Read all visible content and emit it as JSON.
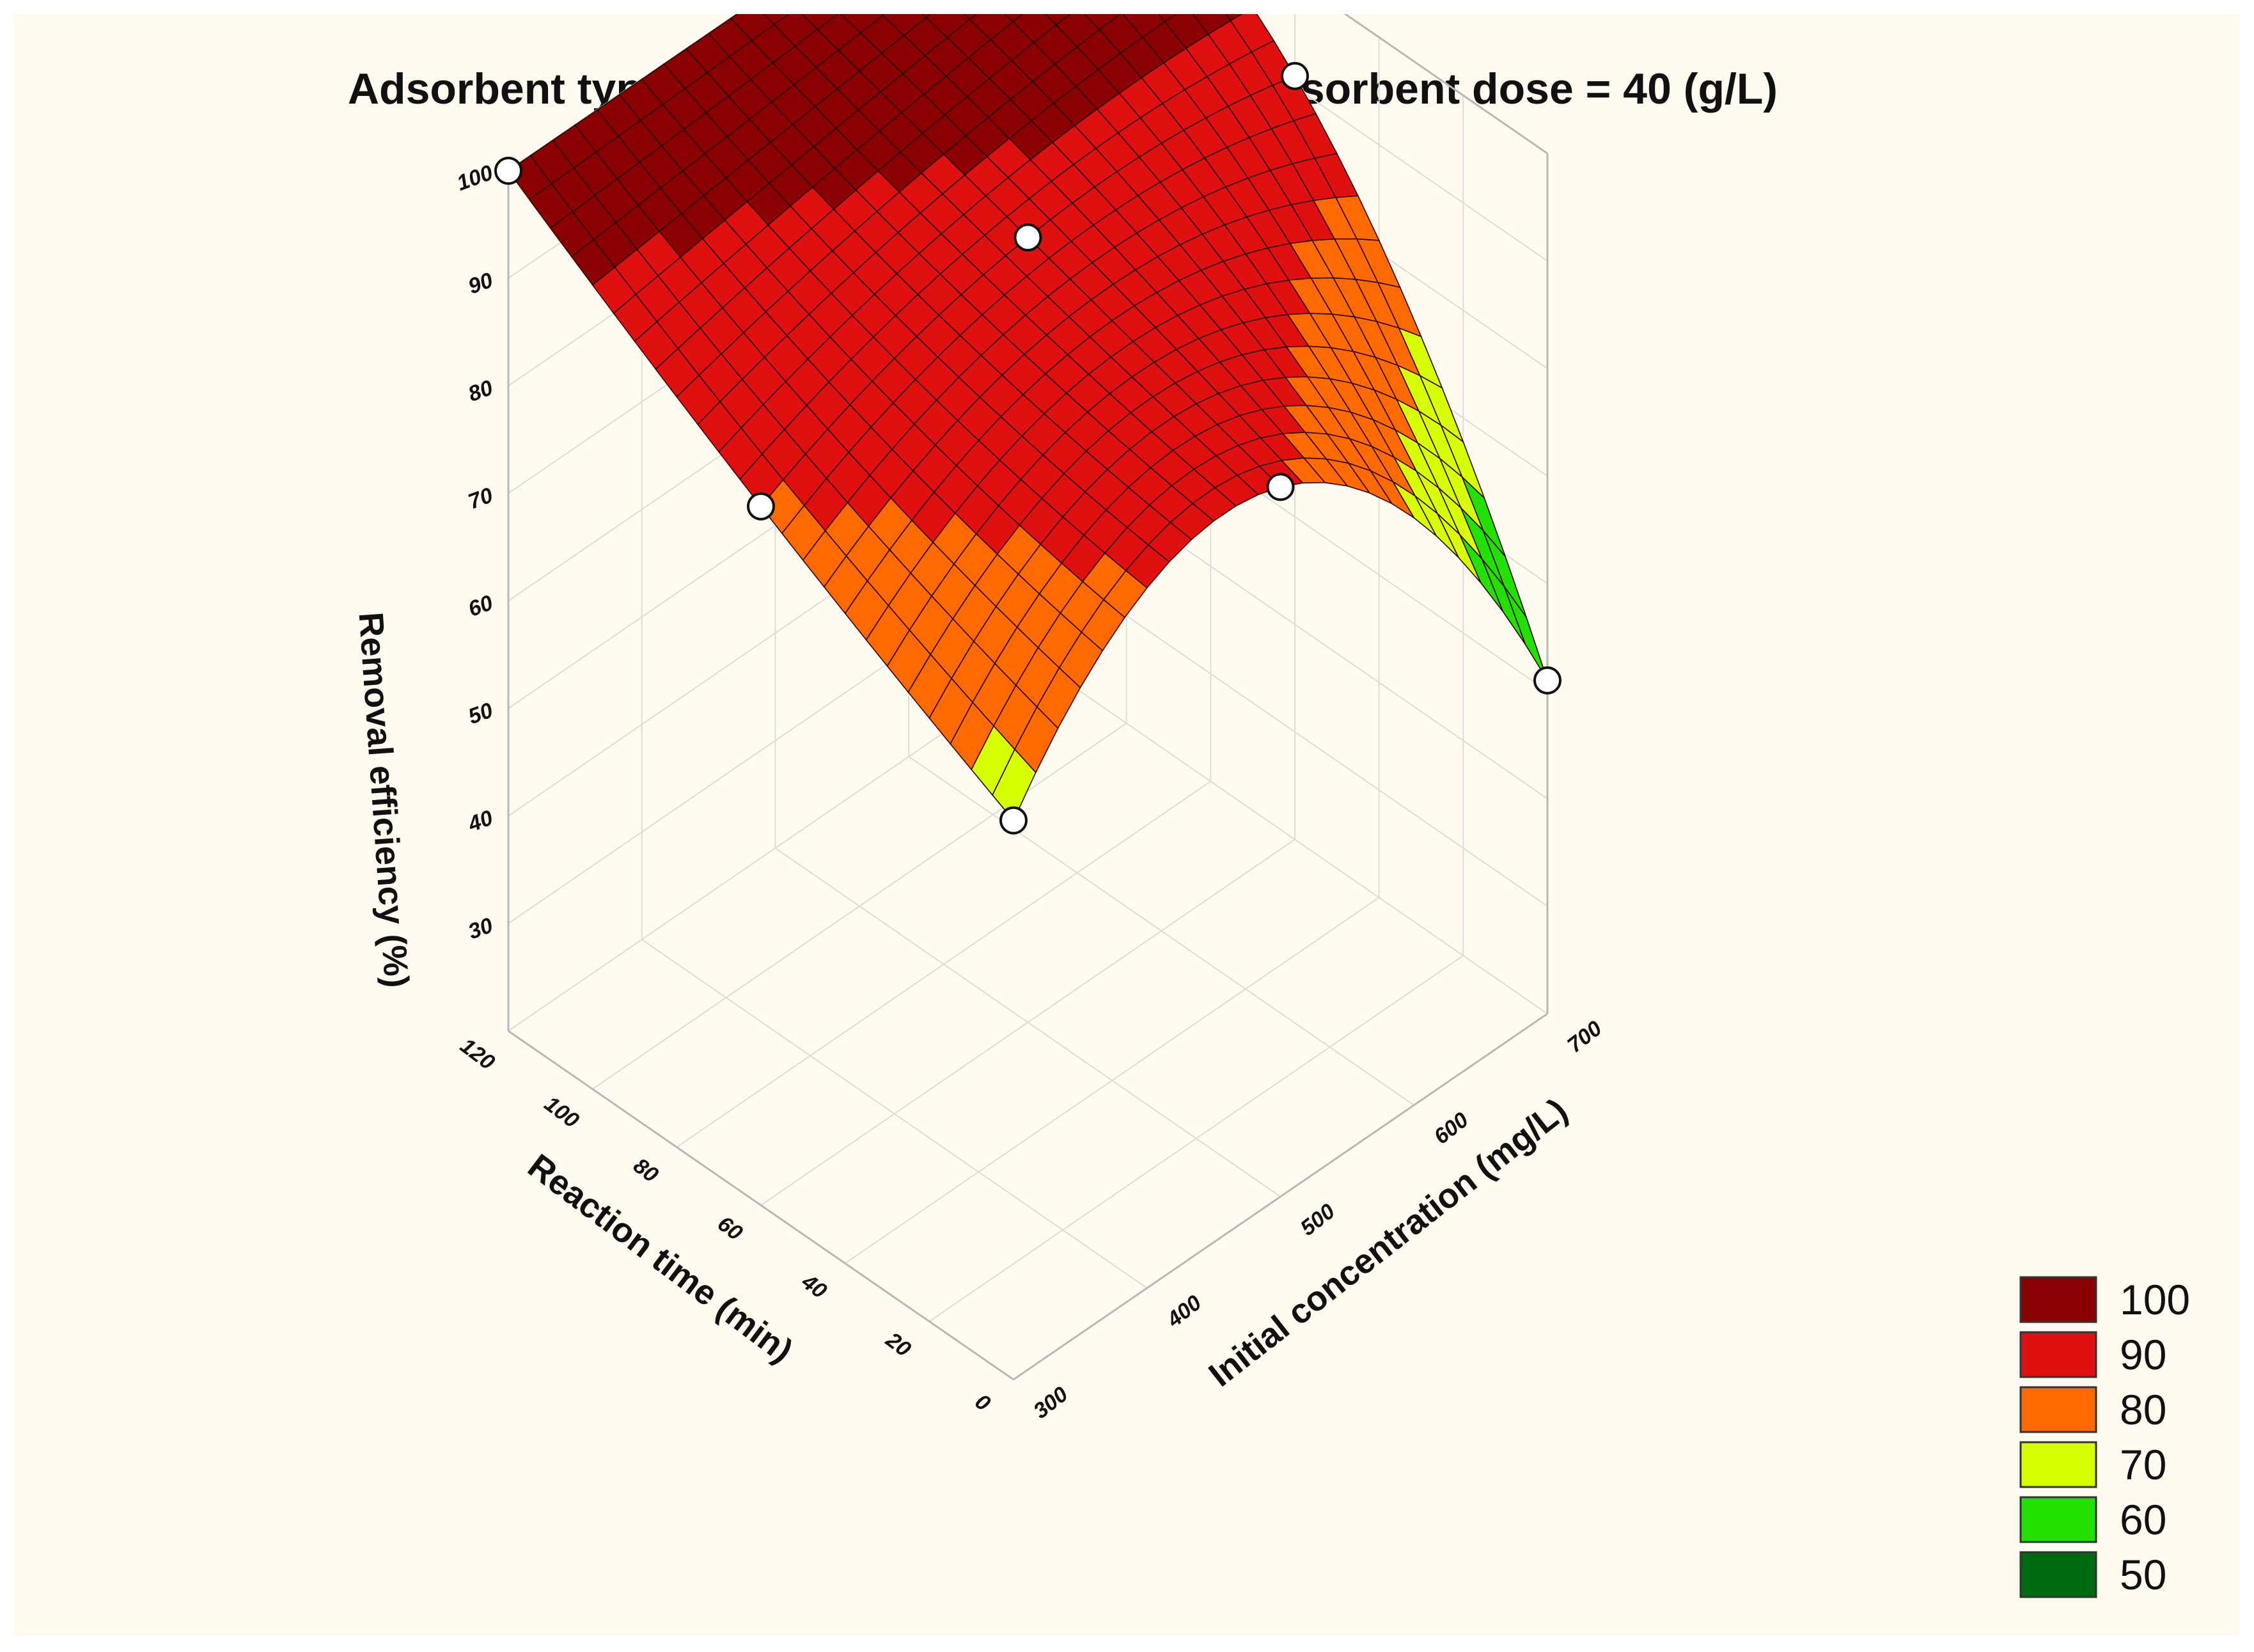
{
  "chart_data": {
    "type": "surface3d",
    "title": "Adsorbent type = CenNa5, Solution pH = 5, Adsorbent dose = 40 (g/L)",
    "xlabel": "Reaction time (min)",
    "ylabel": "Initial concentration (mg/L)",
    "zlabel": "Removal efficiency (%)",
    "x_ticks": [
      "120",
      "100",
      "80",
      "60",
      "40",
      "20",
      "0"
    ],
    "y_ticks": [
      "300",
      "400",
      "500",
      "600",
      "700"
    ],
    "z_ticks": [
      "100",
      "90",
      "80",
      "70",
      "60",
      "50",
      "40",
      "30"
    ],
    "xlim": [
      0,
      120
    ],
    "ylim": [
      300,
      700
    ],
    "zlim": [
      20,
      100
    ],
    "grid": true,
    "legend_position": "bottom-right",
    "legend": [
      {
        "label": "100",
        "color": "#8b0000"
      },
      {
        "label": "90",
        "color": "#e01010"
      },
      {
        "label": "80",
        "color": "#ff6a00"
      },
      {
        "label": "70",
        "color": "#d6ff00"
      },
      {
        "label": "60",
        "color": "#22e000"
      },
      {
        "label": "50",
        "color": "#006a10"
      }
    ],
    "design_points": [
      {
        "time": 120,
        "conc": 300,
        "removal": 100
      },
      {
        "time": 120,
        "conc": 500,
        "removal": 100
      },
      {
        "time": 120,
        "conc": 700,
        "removal": 100
      },
      {
        "time": 60,
        "conc": 300,
        "removal": 85
      },
      {
        "time": 60,
        "conc": 500,
        "removal": 93
      },
      {
        "time": 60,
        "conc": 700,
        "removal": 91
      },
      {
        "time": 0,
        "conc": 300,
        "removal": 72
      },
      {
        "time": 0,
        "conc": 500,
        "removal": 86
      },
      {
        "time": 0,
        "conc": 700,
        "removal": 51
      }
    ]
  }
}
